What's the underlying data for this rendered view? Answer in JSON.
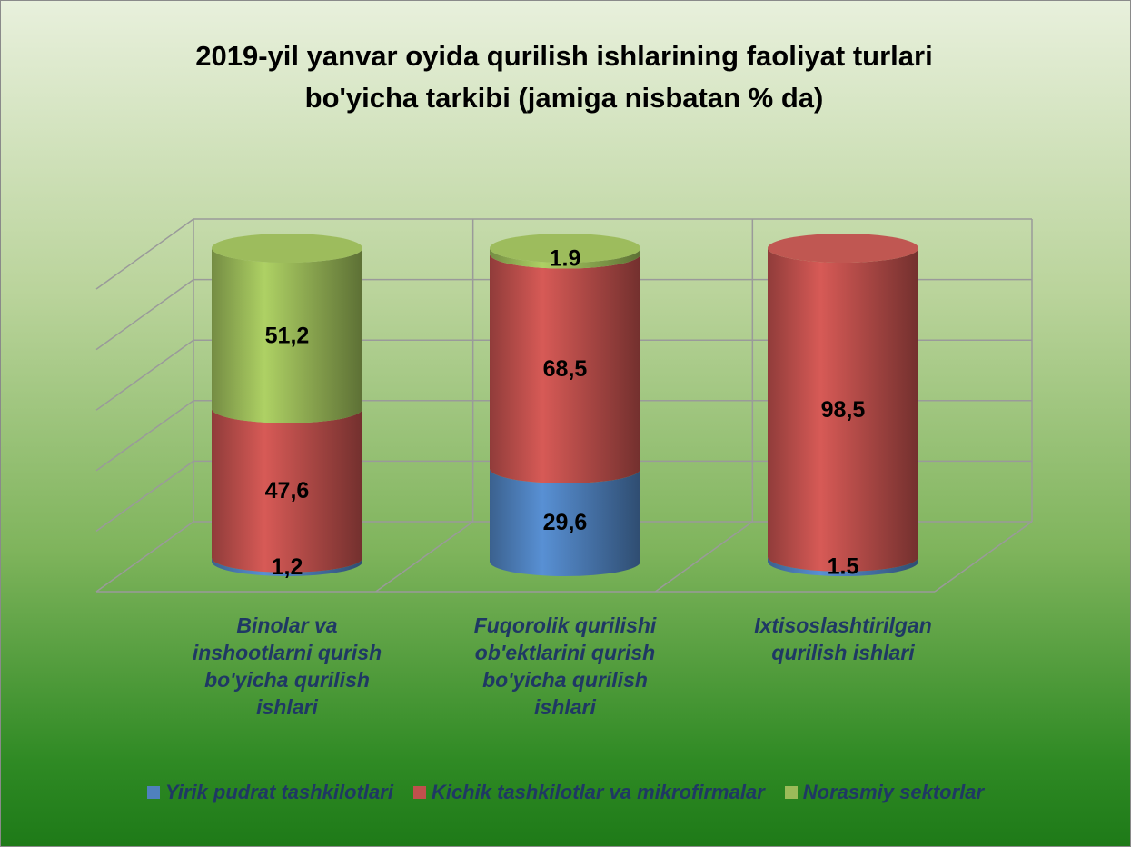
{
  "chart_data": {
    "type": "bar3d_stacked_cylinder",
    "title": "2019-yil yanvar oyida qurilish ishlarining faoliyat turlari bo'yicha tarkibi (jamiga nisbatan % da)",
    "categories": [
      "Binolar va inshootlarni qurish bo'yicha qurilish ishlari",
      "Fuqorolik qurilishi ob'ektlarini qurish bo'yicha qurilish ishlari",
      "Ixtisoslashtirilgan qurilish ishlari"
    ],
    "series": [
      {
        "name": "Yirik pudrat tashkilotlari",
        "color": "#4f81bd",
        "values": [
          1.2,
          29.6,
          1.5
        ],
        "value_labels": [
          "1,2",
          "29,6",
          "1.5"
        ]
      },
      {
        "name": "Kichik tashkilotlar va mikrofirmalar",
        "color": "#c0504d",
        "values": [
          47.6,
          68.5,
          98.5
        ],
        "value_labels": [
          "47,6",
          "68,5",
          "98,5"
        ]
      },
      {
        "name": "Norasmiy sektorlar",
        "color": "#9bbb59",
        "values": [
          51.2,
          1.9,
          null
        ],
        "value_labels": [
          "51,2",
          "1.9",
          null
        ]
      }
    ],
    "ylim": [
      0,
      100
    ],
    "yticks": [
      0,
      20,
      40,
      60,
      80,
      100
    ],
    "grid": true,
    "legend": "bottom"
  }
}
